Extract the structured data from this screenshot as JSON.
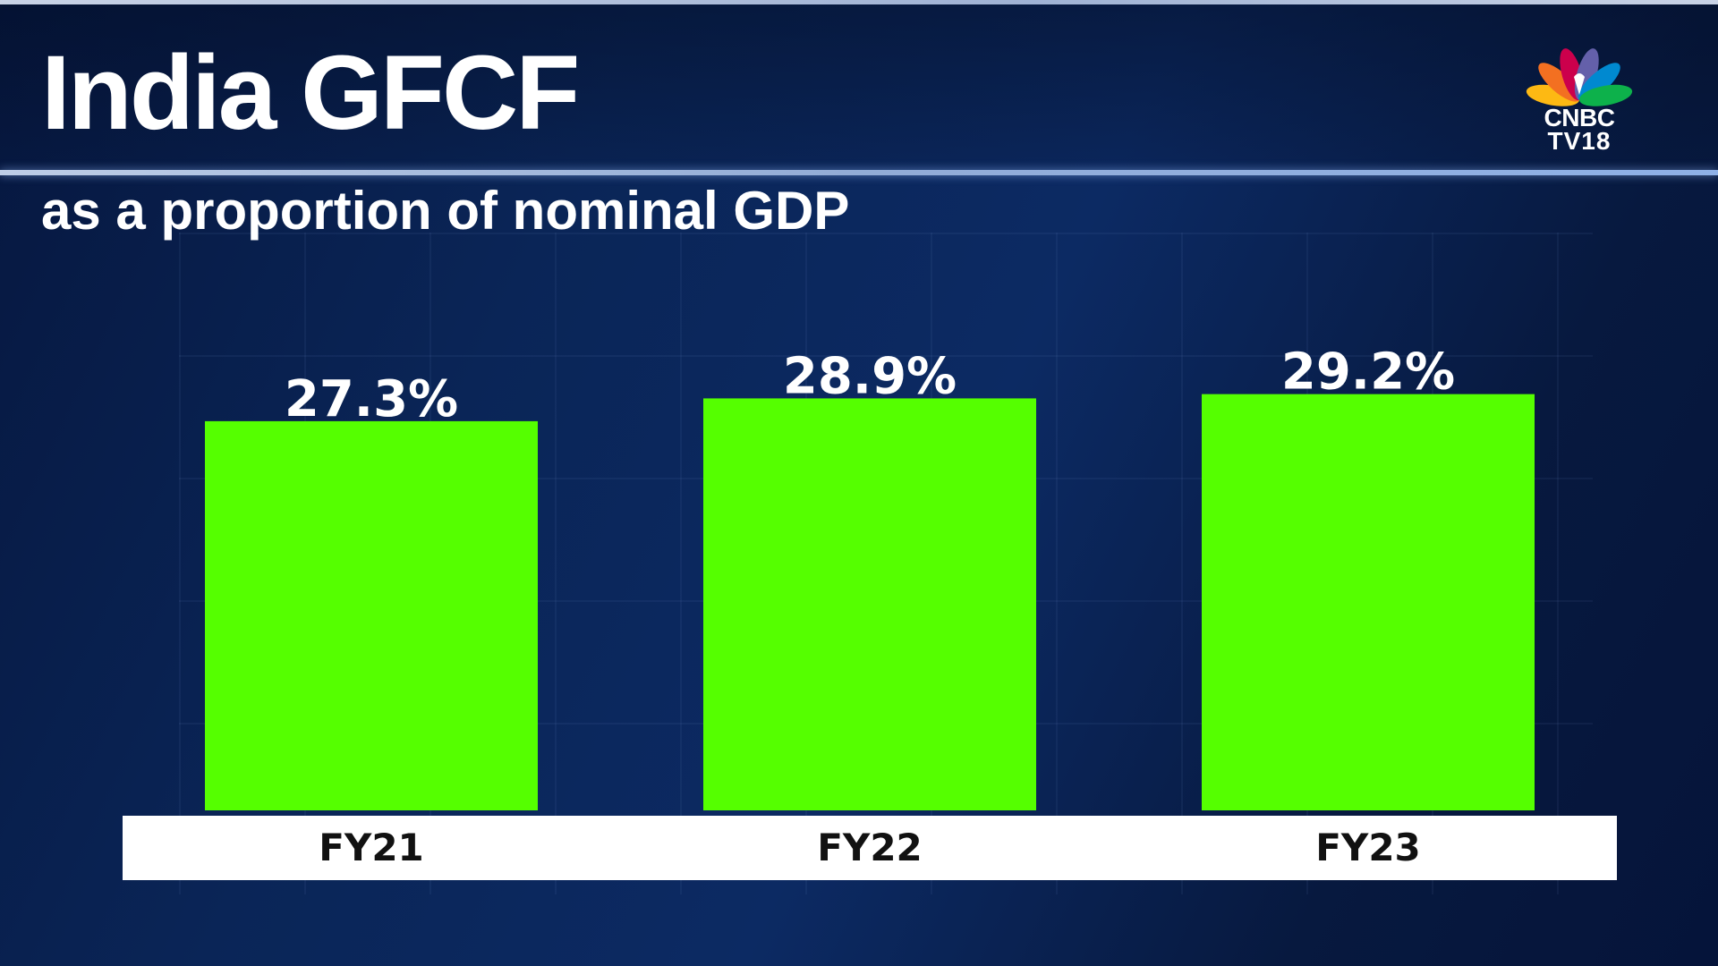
{
  "header": {
    "title": "India GFCF",
    "subtitle": "as a proportion of nominal GDP"
  },
  "logo": {
    "line1": "CNBC",
    "line2": "TV18"
  },
  "colors": {
    "bar": "#55ff00",
    "background": "#0a2557",
    "axis_band": "#ffffff",
    "text": "#ffffff",
    "tick_text": "#111111"
  },
  "chart_data": {
    "type": "bar",
    "title": "India GFCF",
    "subtitle": "as a proportion of nominal GDP",
    "categories": [
      "FY21",
      "FY22",
      "FY23"
    ],
    "values": [
      27.3,
      28.9,
      29.2
    ],
    "value_labels": [
      "27.3%",
      "28.9%",
      "29.2%"
    ],
    "xlabel": "",
    "ylabel": "",
    "ylim": [
      0,
      32
    ],
    "grid": false,
    "legend": "none"
  }
}
